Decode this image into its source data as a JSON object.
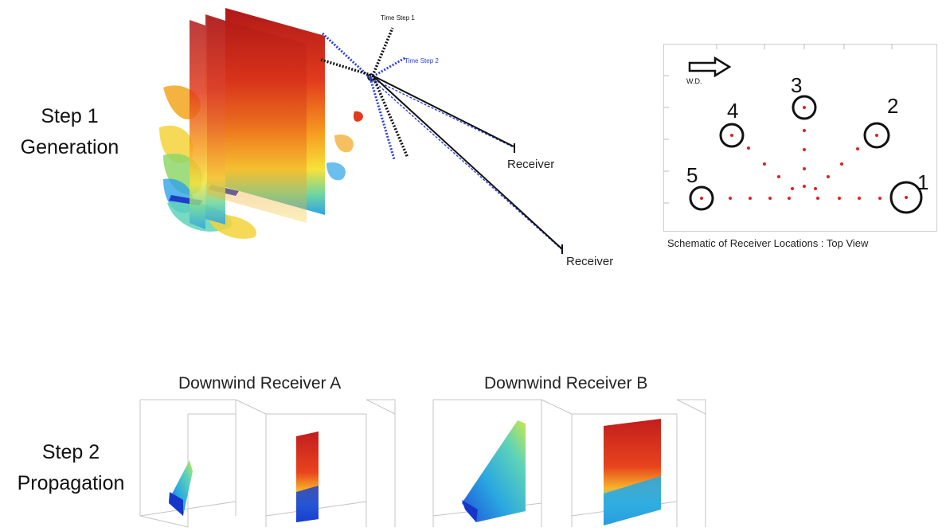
{
  "step1": {
    "line1": "Step 1",
    "line2": "Generation"
  },
  "step2": {
    "line1": "Step 2",
    "line2": "Propagation"
  },
  "generation_figure": {
    "time_step_1": "Time Step 1",
    "time_step_2": "Time Step 2",
    "receiver_labels": [
      "Receiver",
      "Receiver"
    ],
    "colors": {
      "time_step_1": "#111111",
      "time_step_2": "#2a3ee0"
    }
  },
  "schematic": {
    "wind_direction_label": "W.D.",
    "receiver_numbers": [
      "1",
      "2",
      "3",
      "4",
      "5"
    ],
    "caption": "Schematic of Receiver Locations : Top View",
    "marker_color": "#e02020"
  },
  "propagation": {
    "receiver_a_title": "Downwind Receiver A",
    "receiver_b_title": "Downwind Receiver B"
  }
}
